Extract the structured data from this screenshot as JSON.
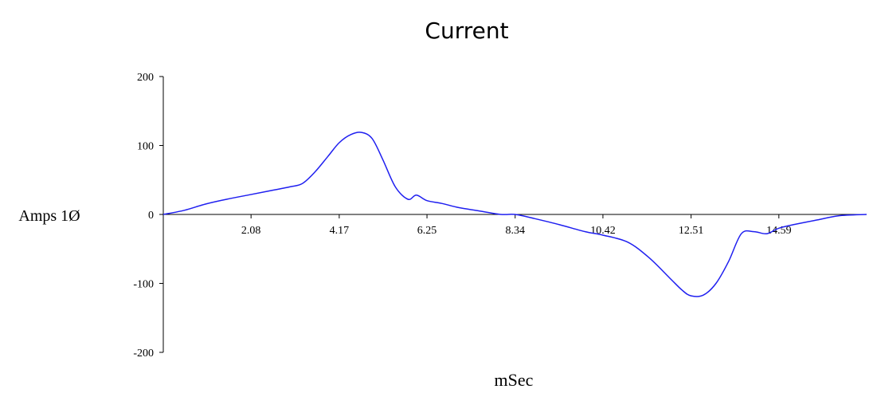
{
  "chart_data": {
    "type": "line",
    "title": "Current",
    "xlabel": "mSec",
    "ylabel": "Amps 1Ø",
    "xlim": [
      0,
      16.67
    ],
    "ylim": [
      -200,
      200
    ],
    "x_ticks": [
      "2.08",
      "4.17",
      "6.25",
      "8.34",
      "10.42",
      "12.51",
      "14.59"
    ],
    "x_tick_values": [
      2.08,
      4.17,
      6.25,
      8.34,
      10.42,
      12.51,
      14.59
    ],
    "y_ticks": [
      "200",
      "100",
      "0",
      "-100",
      "-200"
    ],
    "y_tick_values": [
      200,
      100,
      0,
      -100,
      -200
    ],
    "grid": false,
    "colors": {
      "series": "#1f1ff0",
      "axis": "#000000"
    },
    "series": [
      {
        "x": [
          0,
          0.5,
          1.0,
          1.5,
          2.0,
          2.5,
          3.0,
          3.3,
          3.6,
          3.9,
          4.17,
          4.45,
          4.7,
          4.95,
          5.2,
          5.5,
          5.8,
          6.0,
          6.25,
          6.6,
          7.0,
          7.5,
          8.0,
          8.34,
          8.8,
          9.4,
          10.0,
          10.42,
          11.0,
          11.5,
          12.0,
          12.3,
          12.51,
          12.8,
          13.1,
          13.4,
          13.7,
          14.0,
          14.3,
          14.59,
          15.0,
          15.5,
          16.0,
          16.67
        ],
        "y": [
          0,
          6,
          15,
          22,
          28,
          34,
          40,
          45,
          62,
          84,
          104,
          116,
          119,
          110,
          80,
          40,
          22,
          28,
          20,
          16,
          10,
          5,
          0,
          0,
          -6,
          -15,
          -25,
          -30,
          -40,
          -62,
          -92,
          -110,
          -118,
          -117,
          -100,
          -68,
          -28,
          -25,
          -28,
          -20,
          -14,
          -8,
          -2,
          0
        ]
      }
    ]
  }
}
